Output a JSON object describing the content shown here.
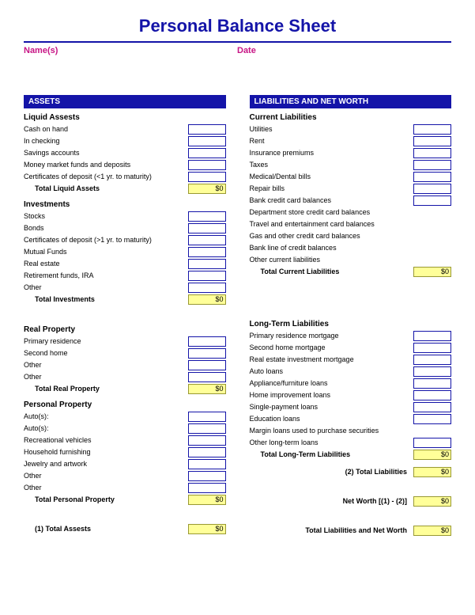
{
  "title": "Personal Balance Sheet",
  "header": {
    "names_label": "Name(s)",
    "date_label": "Date"
  },
  "colors": {
    "title": "#1414a8",
    "header_bg": "#1414a8",
    "header_text": "#ffffff",
    "magenta": "#c71585",
    "cell_border": "#1414a8",
    "total_bg": "#ffff99",
    "total_border": "#999933",
    "page_bg": "#ffffff"
  },
  "left": {
    "section": "ASSETS",
    "groups": [
      {
        "title": "Liquid Assests",
        "items": [
          {
            "label": "Cash on hand",
            "cell": ""
          },
          {
            "label": "In checking",
            "cell": ""
          },
          {
            "label": "Savings accounts",
            "cell": ""
          },
          {
            "label": "Money market funds and deposits",
            "cell": ""
          },
          {
            "label": "Certificates of deposit (<1 yr. to maturity)",
            "cell": ""
          }
        ],
        "total": {
          "label": "Total Liquid Assets",
          "value": "$0"
        }
      },
      {
        "title": "Investments",
        "items": [
          {
            "label": "Stocks",
            "cell": ""
          },
          {
            "label": "Bonds",
            "cell": ""
          },
          {
            "label": "Certificates of deposit (>1 yr. to maturity)",
            "cell": ""
          },
          {
            "label": "Mutual Funds",
            "cell": ""
          },
          {
            "label": "Real estate",
            "cell": ""
          },
          {
            "label": "Retirement funds, IRA",
            "cell": ""
          },
          {
            "label": "Other",
            "cell": ""
          }
        ],
        "total": {
          "label": "Total Investments",
          "value": "$0"
        }
      },
      {
        "title": "Real Property",
        "items": [
          {
            "label": "Primary residence",
            "cell": ""
          },
          {
            "label": "Second home",
            "cell": ""
          },
          {
            "label": "Other",
            "cell": ""
          },
          {
            "label": "Other",
            "cell": ""
          }
        ],
        "total": {
          "label": "Total Real Property",
          "value": "$0"
        }
      },
      {
        "title": "Personal Property",
        "items": [
          {
            "label": "Auto(s):",
            "cell": ""
          },
          {
            "label": "Auto(s):",
            "cell": ""
          },
          {
            "label": "Recreational vehicles",
            "cell": ""
          },
          {
            "label": "Household furnishing",
            "cell": ""
          },
          {
            "label": "Jewelry and artwork",
            "cell": ""
          },
          {
            "label": "Other",
            "cell": ""
          },
          {
            "label": "Other",
            "cell": ""
          }
        ],
        "total": {
          "label": "Total Personal Property",
          "value": "$0"
        }
      }
    ],
    "grand_total": {
      "label": "(1) Total Assests",
      "value": "$0"
    }
  },
  "right": {
    "section": "LIABILITIES AND NET WORTH",
    "groups": [
      {
        "title": "Current Liabilities",
        "items": [
          {
            "label": "Utilities",
            "cell": ""
          },
          {
            "label": "Rent",
            "cell": ""
          },
          {
            "label": "Insurance premiums",
            "cell": ""
          },
          {
            "label": "Taxes",
            "cell": ""
          },
          {
            "label": "Medical/Dental bills",
            "cell": ""
          },
          {
            "label": "Repair bills",
            "cell": ""
          },
          {
            "label": "Bank credit card balances",
            "cell": ""
          },
          {
            "label": "Department store credit card balances",
            "cell": "",
            "nocell": true
          },
          {
            "label": "Travel and entertainment card balances",
            "cell": "",
            "nocell": true
          },
          {
            "label": "Gas and other credit card balances",
            "cell": "",
            "nocell": true
          },
          {
            "label": "Bank line of credit balances",
            "cell": "",
            "nocell": true
          },
          {
            "label": "Other current liabilities",
            "cell": "",
            "nocell": true
          }
        ],
        "total": {
          "label": "Total Current Liabilities",
          "value": "$0"
        }
      },
      {
        "title": "Long-Term Liabilities",
        "items": [
          {
            "label": "Primary residence mortgage",
            "cell": ""
          },
          {
            "label": "Second home mortgage",
            "cell": ""
          },
          {
            "label": "Real estate investment mortgage",
            "cell": ""
          },
          {
            "label": "Auto loans",
            "cell": ""
          },
          {
            "label": "Appliance/furniture loans",
            "cell": ""
          },
          {
            "label": "Home improvement loans",
            "cell": ""
          },
          {
            "label": "Single-payment loans",
            "cell": ""
          },
          {
            "label": "Education loans",
            "cell": ""
          },
          {
            "label": "Margin loans used to purchase securities",
            "cell": "",
            "nocell": true
          },
          {
            "label": "Other long-term loans",
            "cell": ""
          }
        ],
        "total": {
          "label": "Total Long-Term Liabilities",
          "value": "$0"
        }
      }
    ],
    "summaries": [
      {
        "label": "(2) Total Liabilities",
        "value": "$0"
      },
      {
        "label": "Net Worth [(1) - (2)]",
        "value": "$0"
      },
      {
        "label": "Total Liabilities and Net Worth",
        "value": "$0"
      }
    ]
  }
}
